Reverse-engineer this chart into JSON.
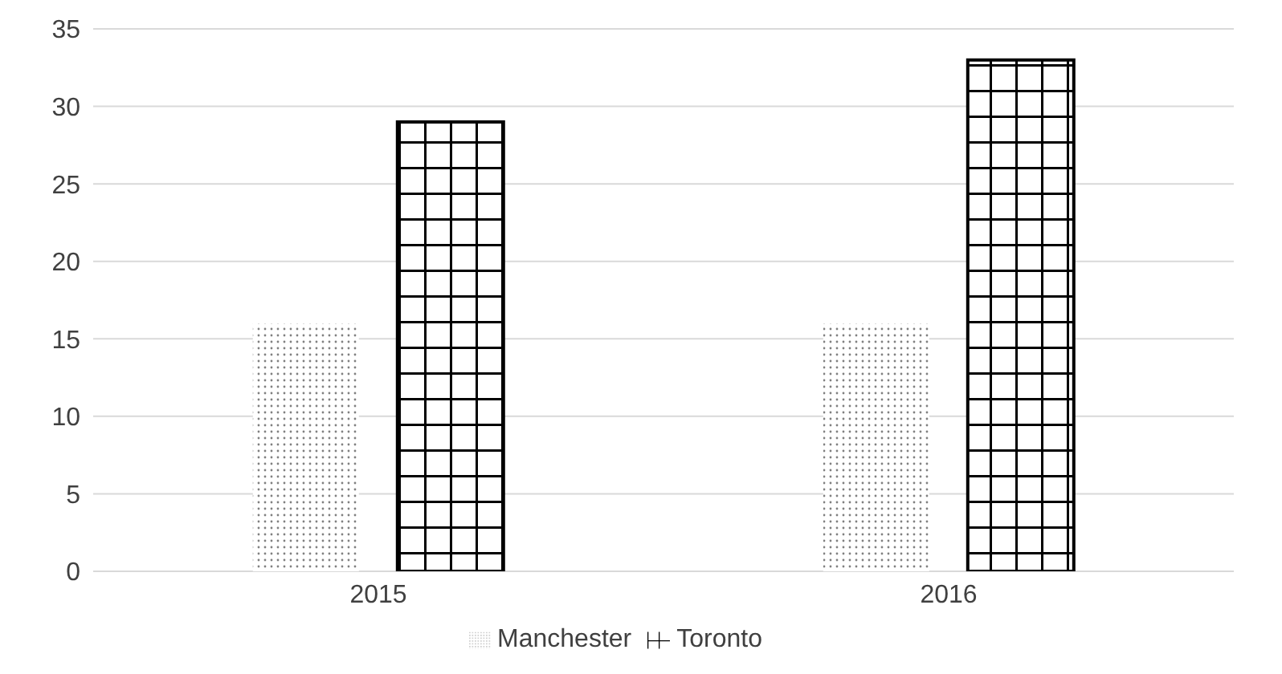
{
  "chart_data": {
    "type": "bar",
    "categories": [
      "2015",
      "2016"
    ],
    "series": [
      {
        "name": "Manchester",
        "color": "#808080",
        "values": [
          16,
          16
        ]
      },
      {
        "name": "Toronto",
        "color": "#000000",
        "values": [
          29,
          33
        ]
      }
    ],
    "ylim": [
      0,
      35
    ],
    "yticks": [
      0,
      5,
      10,
      15,
      20,
      25,
      30,
      35
    ],
    "grid": "y",
    "legend": "bottom"
  }
}
